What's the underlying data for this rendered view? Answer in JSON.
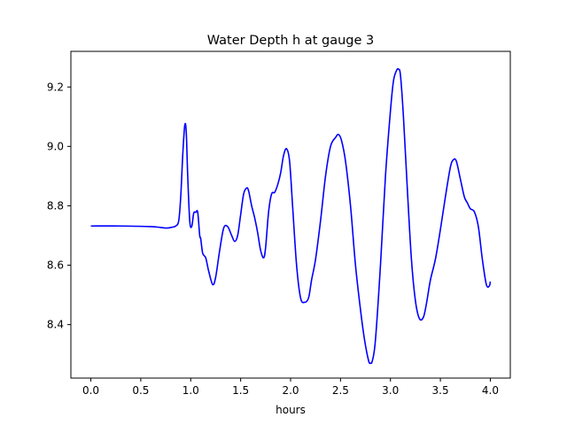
{
  "chart_data": {
    "type": "line",
    "title": "Water Depth h at gauge 3",
    "xlabel": "hours",
    "ylabel": "",
    "xlim": [
      -0.2,
      4.2
    ],
    "ylim": [
      8.22,
      9.32
    ],
    "xticks": [
      0.0,
      0.5,
      1.0,
      1.5,
      2.0,
      2.5,
      3.0,
      3.5,
      4.0
    ],
    "xtick_labels": [
      "0.0",
      "0.5",
      "1.0",
      "1.5",
      "2.0",
      "2.5",
      "3.0",
      "3.5",
      "4.0"
    ],
    "yticks": [
      8.4,
      8.6,
      8.8,
      9.0,
      9.2
    ],
    "ytick_labels": [
      "8.4",
      "8.6",
      "8.8",
      "9.0",
      "9.2"
    ],
    "grid": false,
    "series": [
      {
        "color": "#0000ff",
        "x": [
          0.0,
          0.3,
          0.6,
          0.7,
          0.76,
          0.8,
          0.85,
          0.88,
          0.9,
          0.92,
          0.94,
          0.955,
          0.97,
          0.99,
          1.01,
          1.03,
          1.05,
          1.07,
          1.09,
          1.1,
          1.12,
          1.15,
          1.18,
          1.22,
          1.25,
          1.29,
          1.33,
          1.37,
          1.41,
          1.44,
          1.47,
          1.5,
          1.53,
          1.56,
          1.58,
          1.61,
          1.64,
          1.67,
          1.7,
          1.73,
          1.75,
          1.78,
          1.81,
          1.84,
          1.87,
          1.9,
          1.93,
          1.96,
          1.99,
          2.02,
          2.06,
          2.1,
          2.14,
          2.18,
          2.21,
          2.25,
          2.3,
          2.35,
          2.4,
          2.45,
          2.48,
          2.51,
          2.55,
          2.6,
          2.65,
          2.7,
          2.74,
          2.78,
          2.8,
          2.82,
          2.85,
          2.9,
          2.95,
          3.0,
          3.03,
          3.06,
          3.08,
          3.1,
          3.13,
          3.17,
          3.21,
          3.25,
          3.29,
          3.33,
          3.36,
          3.4,
          3.45,
          3.5,
          3.55,
          3.6,
          3.63,
          3.66,
          3.7,
          3.74,
          3.77,
          3.8,
          3.84,
          3.88,
          3.92,
          3.96,
          3.99,
          4.0
        ],
        "y": [
          8.732,
          8.732,
          8.73,
          8.727,
          8.725,
          8.727,
          8.732,
          8.75,
          8.83,
          8.97,
          9.07,
          9.05,
          8.9,
          8.75,
          8.73,
          8.775,
          8.778,
          8.778,
          8.7,
          8.69,
          8.64,
          8.625,
          8.58,
          8.535,
          8.56,
          8.65,
          8.725,
          8.73,
          8.7,
          8.68,
          8.7,
          8.77,
          8.84,
          8.86,
          8.85,
          8.8,
          8.76,
          8.71,
          8.65,
          8.625,
          8.66,
          8.78,
          8.84,
          8.845,
          8.87,
          8.91,
          8.97,
          8.992,
          8.95,
          8.8,
          8.6,
          8.49,
          8.475,
          8.49,
          8.55,
          8.62,
          8.75,
          8.9,
          9.0,
          9.03,
          9.04,
          9.02,
          8.95,
          8.8,
          8.6,
          8.45,
          8.35,
          8.28,
          8.27,
          8.28,
          8.35,
          8.6,
          8.9,
          9.12,
          9.22,
          9.255,
          9.26,
          9.24,
          9.1,
          8.85,
          8.62,
          8.48,
          8.42,
          8.425,
          8.47,
          8.55,
          8.62,
          8.72,
          8.83,
          8.93,
          8.955,
          8.95,
          8.89,
          8.83,
          8.81,
          8.79,
          8.78,
          8.73,
          8.62,
          8.535,
          8.53,
          8.545
        ]
      }
    ]
  }
}
